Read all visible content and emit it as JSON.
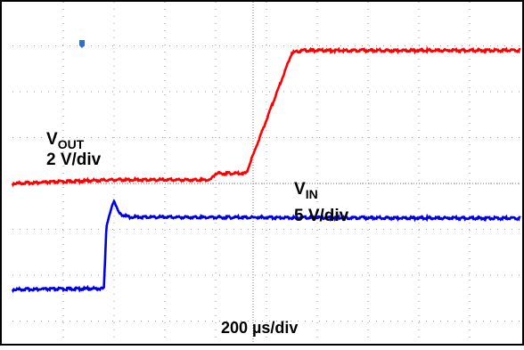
{
  "chart_data": {
    "type": "line",
    "title": "",
    "grid": true,
    "x_scale_label": "200 µs/div",
    "x_divisions": 10,
    "y_divisions": 8,
    "trigger_marker_color": "#2a6fd6",
    "series": [
      {
        "name_main": "V",
        "name_sub": "OUT",
        "scale_label": "2 V/div",
        "color": "#ff0000",
        "ground_div": 4.0,
        "units_per_div": 2,
        "x_div": [
          0,
          2.0,
          3.9,
          4.0,
          4.6,
          5.5,
          5.7,
          7.5,
          10
        ],
        "values_div": [
          0.0,
          0.08,
          0.08,
          0.22,
          0.22,
          2.85,
          2.9,
          2.9,
          2.9
        ]
      },
      {
        "name_main": "V",
        "name_sub": "IN",
        "scale_label": "5 V/div",
        "color": "#0000e6",
        "ground_div": 1.6,
        "units_per_div": 5,
        "x_div": [
          0,
          1.8,
          1.85,
          2.0,
          2.1,
          2.3,
          10
        ],
        "values_div": [
          0.0,
          0.02,
          1.4,
          1.95,
          1.65,
          1.58,
          1.55
        ]
      }
    ]
  }
}
